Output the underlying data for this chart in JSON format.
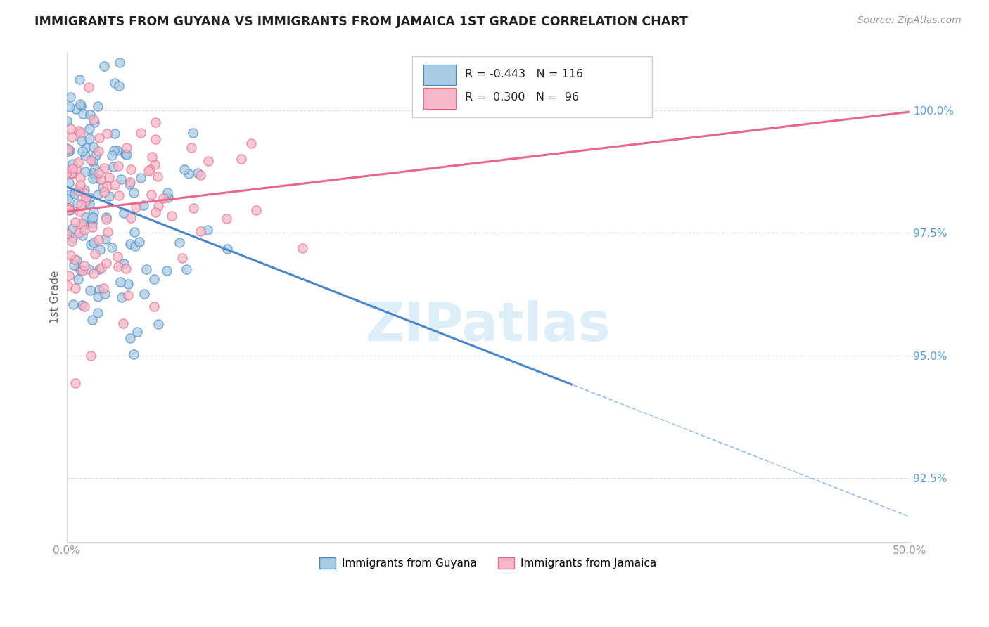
{
  "title": "IMMIGRANTS FROM GUYANA VS IMMIGRANTS FROM JAMAICA 1ST GRADE CORRELATION CHART",
  "source": "Source: ZipAtlas.com",
  "ylabel": "1st Grade",
  "legend_label_blue": "Immigrants from Guyana",
  "legend_label_pink": "Immigrants from Jamaica",
  "R_blue": -0.443,
  "N_blue": 116,
  "R_pink": 0.3,
  "N_pink": 96,
  "xlim": [
    0.0,
    50.0
  ],
  "ylim": [
    91.2,
    101.2
  ],
  "yticks": [
    92.5,
    95.0,
    97.5,
    100.0
  ],
  "ytick_labels": [
    "92.5%",
    "95.0%",
    "97.5%",
    "100.0%"
  ],
  "xticks": [
    0.0,
    12.5,
    25.0,
    37.5,
    50.0
  ],
  "xtick_labels": [
    "0.0%",
    "",
    "",
    "",
    "50.0%"
  ],
  "color_blue": "#a8cce4",
  "color_pink": "#f4b8c8",
  "line_blue": "#4a86c8",
  "line_pink": "#e8688a",
  "ytick_color": "#5a9fd4",
  "xtick_color": "#999999",
  "watermark_color": "#ddeef8",
  "grid_color": "#c8dce8"
}
